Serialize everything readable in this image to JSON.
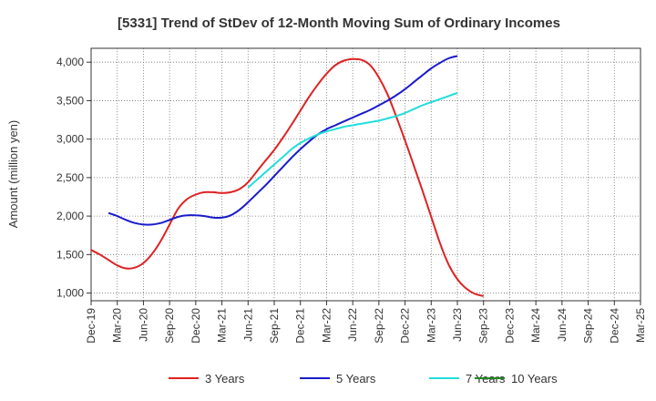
{
  "chart_data": {
    "type": "line",
    "title": "[5331]  Trend of StDev of 12-Month Moving Sum of Ordinary Incomes",
    "xlabel": "",
    "ylabel": "Amount (million yen)",
    "ylim": [
      900,
      4180
    ],
    "yticks": [
      1000,
      1500,
      2000,
      2500,
      3000,
      3500,
      4000
    ],
    "ytick_labels": [
      "1,000",
      "1,500",
      "2,000",
      "2,500",
      "3,000",
      "3,500",
      "4,000"
    ],
    "xtick_labels": [
      "Dec-19",
      "Mar-20",
      "Jun-20",
      "Sep-20",
      "Dec-20",
      "Mar-21",
      "Jun-21",
      "Sep-21",
      "Dec-21",
      "Mar-22",
      "Jun-22",
      "Sep-22",
      "Dec-22",
      "Mar-23",
      "Jun-23",
      "Sep-23",
      "Dec-23",
      "Mar-24",
      "Jun-24",
      "Sep-24",
      "Dec-24",
      "Mar-25"
    ],
    "grid": true,
    "legend_position": "bottom",
    "series": [
      {
        "name": "3 Years",
        "color": "#dd2222",
        "start_index": 0,
        "values": [
          1560,
          1500,
          1430,
          1360,
          1320,
          1330,
          1390,
          1510,
          1680,
          1890,
          2100,
          2220,
          2280,
          2310,
          2310,
          2300,
          2310,
          2350,
          2440,
          2580,
          2720,
          2860,
          3020,
          3190,
          3370,
          3550,
          3710,
          3850,
          3960,
          4020,
          4040,
          4030,
          3960,
          3800,
          3580,
          3290,
          2980,
          2660,
          2330,
          1990,
          1650,
          1370,
          1180,
          1060,
          990,
          960
        ]
      },
      {
        "name": "5 Years",
        "color": "#1a1acc",
        "start_index": 2,
        "values": [
          2040,
          2000,
          1950,
          1910,
          1890,
          1890,
          1910,
          1950,
          1990,
          2010,
          2010,
          2000,
          1980,
          1980,
          2010,
          2080,
          2180,
          2290,
          2400,
          2520,
          2640,
          2760,
          2870,
          2970,
          3060,
          3130,
          3180,
          3230,
          3280,
          3330,
          3380,
          3440,
          3500,
          3570,
          3650,
          3740,
          3830,
          3920,
          3990,
          4050,
          4080
        ]
      },
      {
        "name": "7 Years",
        "color": "#22dddd",
        "start_index": 18,
        "values": [
          2370,
          2470,
          2570,
          2670,
          2770,
          2870,
          2950,
          3010,
          3060,
          3100,
          3130,
          3160,
          3180,
          3200,
          3220,
          3240,
          3270,
          3300,
          3340,
          3390,
          3440,
          3480,
          3520,
          3560,
          3600
        ]
      },
      {
        "name": "10 Years",
        "color": "#228822",
        "start_index": 0,
        "values": []
      }
    ]
  }
}
